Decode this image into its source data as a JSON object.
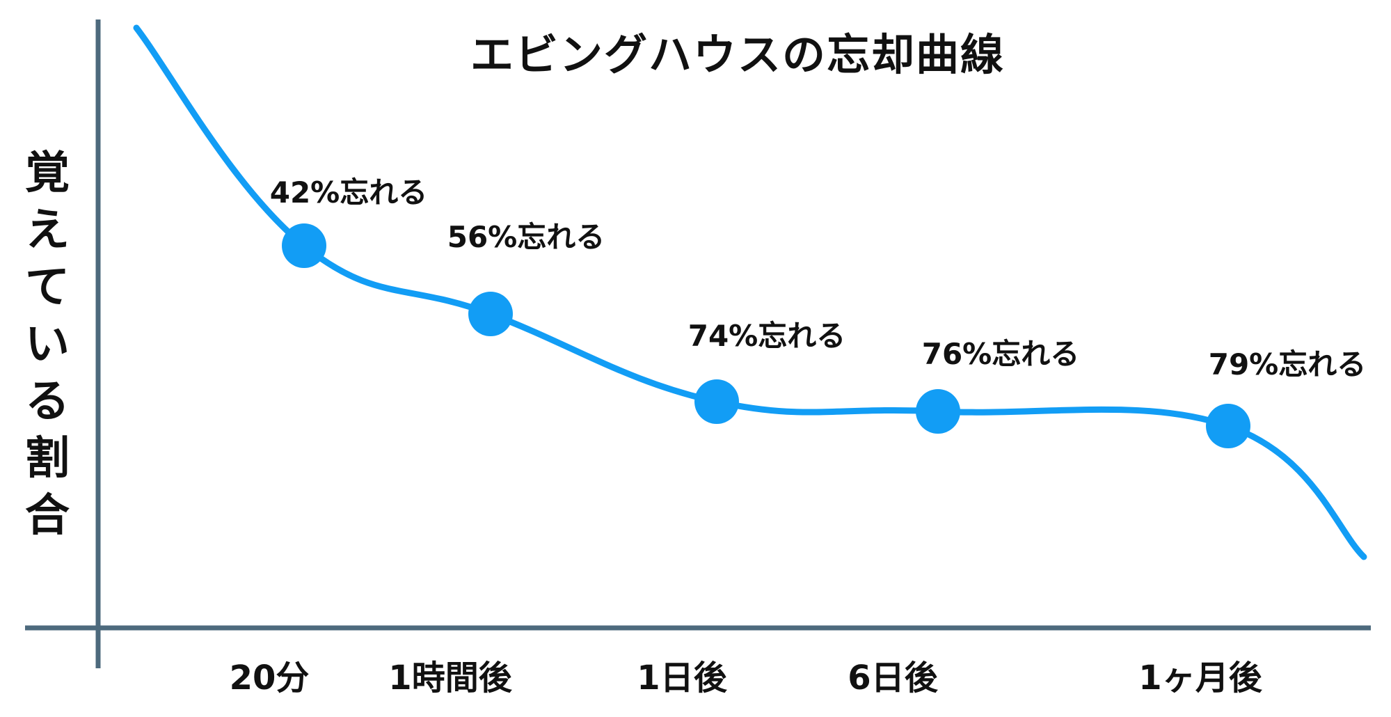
{
  "chart_data": {
    "type": "line",
    "title": "エビングハウスの忘却曲線",
    "ylabel": "覚えている割合",
    "xlabel": "",
    "categories": [
      "20分",
      "1時間後",
      "1日後",
      "6日後",
      "1ヶ月後"
    ],
    "series": [
      {
        "values": [
          42,
          56,
          74,
          76,
          79
        ],
        "labels": [
          "42%忘れる",
          "56%忘れる",
          "74%忘れる",
          "76%忘れる",
          "79%忘れる"
        ]
      }
    ],
    "grid": false,
    "legend": "none",
    "colors": {
      "curve": "#129df5",
      "axis": "#4d6a7d",
      "text": "#111111"
    }
  }
}
